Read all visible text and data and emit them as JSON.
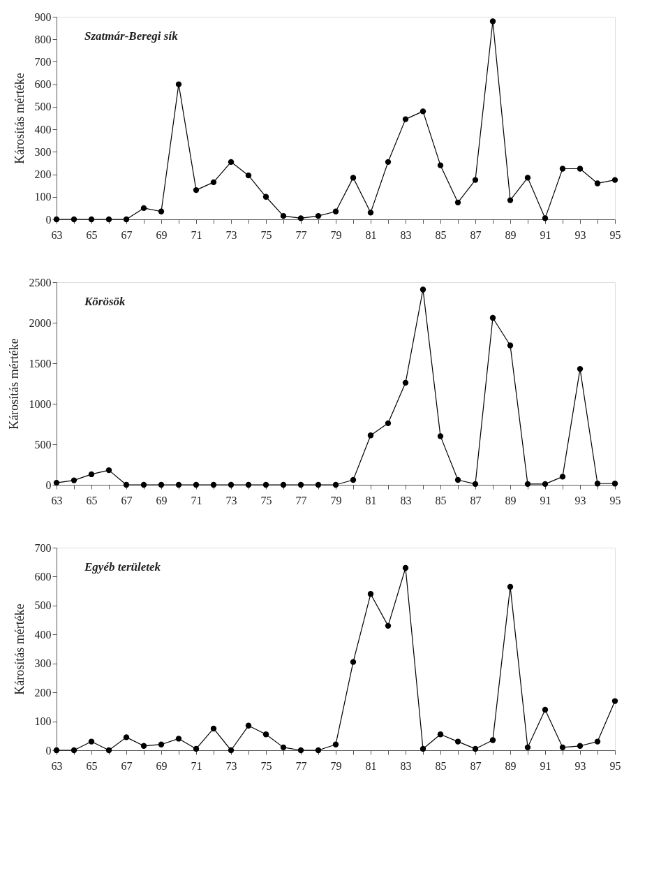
{
  "chart_data": [
    {
      "type": "line",
      "title": "Szatmár-Beregi sík",
      "ylabel": "Károsítás mértéke",
      "x": [
        63,
        64,
        65,
        66,
        67,
        68,
        69,
        70,
        71,
        72,
        73,
        74,
        75,
        76,
        77,
        78,
        79,
        80,
        81,
        82,
        83,
        84,
        85,
        86,
        87,
        88,
        89,
        90,
        91,
        92,
        93,
        94,
        95
      ],
      "series": [
        {
          "color": "#000000",
          "values": [
            0,
            0,
            0,
            0,
            0,
            50,
            35,
            600,
            130,
            165,
            255,
            195,
            100,
            15,
            5,
            15,
            35,
            185,
            30,
            255,
            445,
            480,
            240,
            75,
            175,
            880,
            85,
            185,
            5,
            225,
            225,
            160,
            175
          ]
        }
      ],
      "xlim": [
        63,
        95
      ],
      "xticks": [
        63,
        {
          "value": 64,
          "label": null
        },
        65,
        {
          "value": 66,
          "label": null
        },
        67,
        {
          "value": 68,
          "label": null
        },
        69,
        {
          "value": 70,
          "label": null
        },
        71,
        {
          "value": 72,
          "label": null
        },
        73,
        {
          "value": 74,
          "label": null
        },
        75,
        {
          "value": 76,
          "label": null
        },
        77,
        {
          "value": 78,
          "label": null
        },
        79,
        {
          "value": 80,
          "label": null
        },
        81,
        {
          "value": 82,
          "label": null
        },
        83,
        {
          "value": 84,
          "label": null
        },
        85,
        {
          "value": 86,
          "label": null
        },
        87,
        {
          "value": 88,
          "label": null
        },
        89,
        {
          "value": 90,
          "label": null
        },
        91,
        {
          "value": 92,
          "label": null
        },
        93,
        {
          "value": 94,
          "label": null
        },
        95
      ],
      "ylim": [
        0,
        900
      ],
      "yticks": [
        0,
        100,
        200,
        300,
        400,
        500,
        600,
        700,
        800,
        900
      ],
      "grid": false,
      "marker": "circle",
      "line_style": "solid"
    },
    {
      "type": "line",
      "title": "Körösök",
      "ylabel": "Károsítás mértéke",
      "x": [
        63,
        64,
        65,
        66,
        67,
        68,
        69,
        70,
        71,
        72,
        73,
        74,
        75,
        76,
        77,
        78,
        79,
        80,
        81,
        82,
        83,
        84,
        85,
        86,
        87,
        88,
        89,
        90,
        91,
        92,
        93,
        94,
        95
      ],
      "series": [
        {
          "color": "#000000",
          "values": [
            25,
            55,
            130,
            180,
            0,
            0,
            0,
            0,
            0,
            0,
            0,
            0,
            0,
            0,
            0,
            0,
            0,
            60,
            610,
            760,
            1260,
            2410,
            600,
            60,
            10,
            2060,
            1720,
            10,
            10,
            100,
            1430,
            15,
            15
          ]
        }
      ],
      "xlim": [
        63,
        95
      ],
      "xticks": [
        63,
        {
          "value": 64,
          "label": null
        },
        65,
        {
          "value": 66,
          "label": null
        },
        67,
        {
          "value": 68,
          "label": null
        },
        69,
        {
          "value": 70,
          "label": null
        },
        71,
        {
          "value": 72,
          "label": null
        },
        73,
        {
          "value": 74,
          "label": null
        },
        75,
        {
          "value": 76,
          "label": null
        },
        77,
        {
          "value": 78,
          "label": null
        },
        79,
        {
          "value": 80,
          "label": null
        },
        81,
        {
          "value": 82,
          "label": null
        },
        83,
        {
          "value": 84,
          "label": null
        },
        85,
        {
          "value": 86,
          "label": null
        },
        87,
        {
          "value": 88,
          "label": null
        },
        89,
        {
          "value": 90,
          "label": null
        },
        91,
        {
          "value": 92,
          "label": null
        },
        93,
        {
          "value": 94,
          "label": null
        },
        95
      ],
      "ylim": [
        0,
        2500
      ],
      "yticks": [
        0,
        500,
        1000,
        1500,
        2000,
        2500
      ],
      "grid": false,
      "marker": "circle",
      "line_style": "solid"
    },
    {
      "type": "line",
      "title": "Egyéb területek",
      "ylabel": "Károsítás mértéke",
      "x": [
        63,
        64,
        65,
        66,
        67,
        68,
        69,
        70,
        71,
        72,
        73,
        74,
        75,
        76,
        77,
        78,
        79,
        80,
        81,
        82,
        83,
        84,
        85,
        86,
        87,
        88,
        89,
        90,
        91,
        92,
        93,
        94,
        95
      ],
      "series": [
        {
          "color": "#000000",
          "values": [
            0,
            0,
            30,
            0,
            45,
            15,
            20,
            40,
            5,
            75,
            0,
            85,
            55,
            10,
            0,
            0,
            20,
            305,
            540,
            430,
            630,
            5,
            55,
            30,
            5,
            35,
            565,
            10,
            140,
            10,
            15,
            30,
            170
          ]
        }
      ],
      "xlim": [
        63,
        95
      ],
      "xticks": [
        63,
        {
          "value": 64,
          "label": null
        },
        65,
        {
          "value": 66,
          "label": null
        },
        67,
        {
          "value": 68,
          "label": null
        },
        69,
        {
          "value": 70,
          "label": null
        },
        71,
        {
          "value": 72,
          "label": null
        },
        73,
        {
          "value": 74,
          "label": null
        },
        75,
        {
          "value": 76,
          "label": null
        },
        77,
        {
          "value": 78,
          "label": null
        },
        79,
        {
          "value": 80,
          "label": null
        },
        81,
        {
          "value": 82,
          "label": null
        },
        83,
        {
          "value": 84,
          "label": null
        },
        85,
        {
          "value": 86,
          "label": null
        },
        87,
        {
          "value": 88,
          "label": null
        },
        89,
        {
          "value": 90,
          "label": null
        },
        91,
        {
          "value": 92,
          "label": null
        },
        93,
        {
          "value": 94,
          "label": null
        },
        95
      ],
      "ylim": [
        0,
        700
      ],
      "yticks": [
        0,
        100,
        200,
        300,
        400,
        500,
        600,
        700
      ],
      "grid": false,
      "marker": "circle",
      "line_style": "solid"
    }
  ]
}
